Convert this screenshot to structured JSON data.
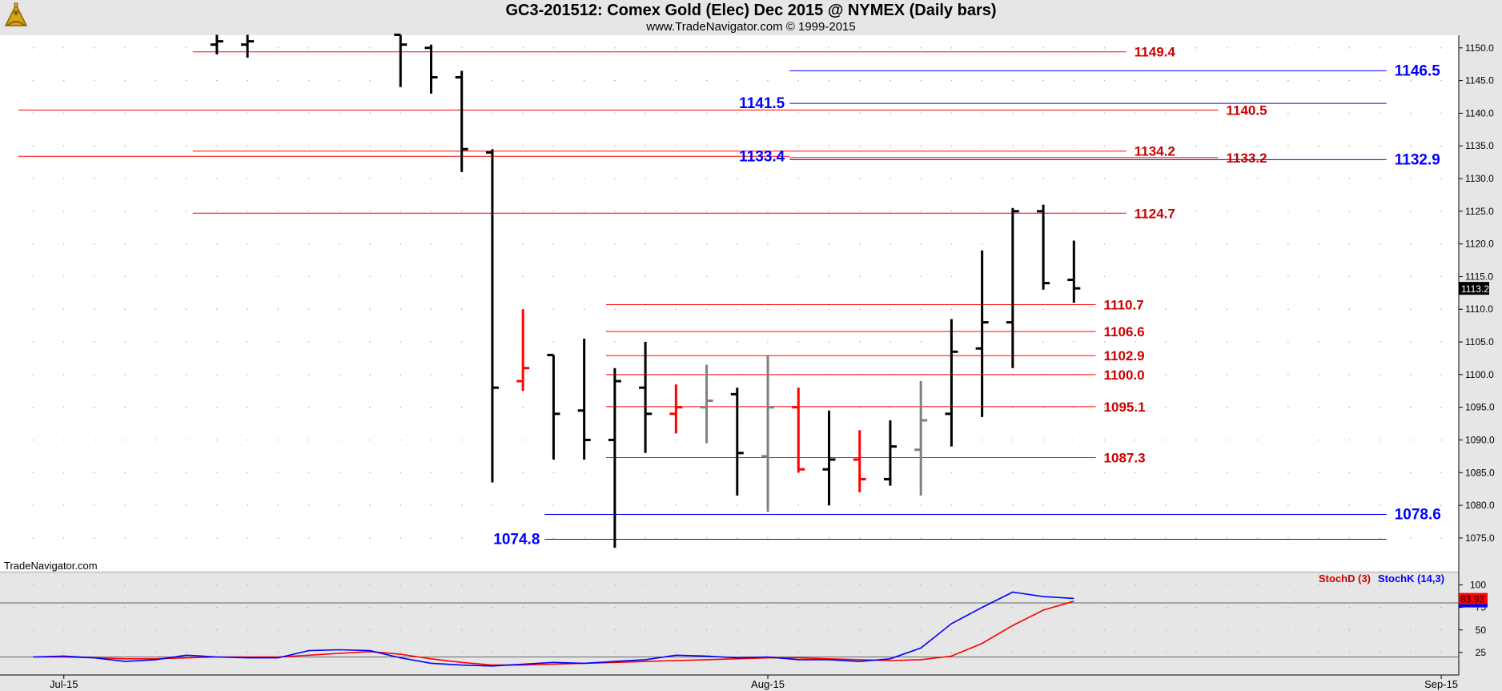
{
  "header": {
    "title": "GC3-201512:  Comex Gold (Elec) Dec 2015 @ NYMEX  (Daily bars)",
    "subtitle": "www.TradeNavigator.com © 1999-2015",
    "watermark": "TradeNavigator.com"
  },
  "colors": {
    "background": "#ffffff",
    "frame": "#e6e6e6",
    "up_bar": "#000000",
    "down_bar": "#ff0000",
    "neutral_bar": "#808080",
    "red_level": "#ff0000",
    "red_label": "#cc0000",
    "blue_level": "#0000ff",
    "stoch_d": "#ff0000",
    "stoch_k": "#0000ff"
  },
  "chart_data": [
    {
      "type": "ohlc",
      "title": "GC3-201512:  Comex Gold (Elec) Dec 2015 @ NYMEX  (Daily bars)",
      "ylim": [
        1071,
        1152
      ],
      "y_ticks": [
        "1075.0",
        "1080.0",
        "1085.0",
        "1090.0",
        "1095.0",
        "1100.0",
        "1105.0",
        "1110.0",
        "1115.0",
        "1120.0",
        "1125.0",
        "1130.0",
        "1135.0",
        "1140.0",
        "1145.0",
        "1150.0"
      ],
      "x_ticks": [
        {
          "label": "Jul-15",
          "index": 1
        },
        {
          "label": "Aug-15",
          "index": 24
        },
        {
          "label": "Sep-15",
          "index": 46
        }
      ],
      "last_price": "1113.2",
      "bars": [
        {
          "i": 6,
          "o": 1150.5,
          "h": 1152.0,
          "l": 1149.0,
          "c": 1151.0,
          "color": "black"
        },
        {
          "i": 7,
          "o": 1150.5,
          "h": 1152.0,
          "l": 1148.5,
          "c": 1151.0,
          "color": "black"
        },
        {
          "i": 12,
          "o": 1152.0,
          "h": 1152.0,
          "l": 1144.0,
          "c": 1150.5,
          "color": "black"
        },
        {
          "i": 13,
          "o": 1150.0,
          "h": 1150.5,
          "l": 1143.0,
          "c": 1145.5,
          "color": "black"
        },
        {
          "i": 14,
          "o": 1145.5,
          "h": 1146.5,
          "l": 1131.0,
          "c": 1134.5,
          "color": "black"
        },
        {
          "i": 15,
          "o": 1134.0,
          "h": 1134.5,
          "l": 1083.5,
          "c": 1098.0,
          "color": "black"
        },
        {
          "i": 16,
          "o": 1099.0,
          "h": 1110.0,
          "l": 1097.5,
          "c": 1101.0,
          "color": "red"
        },
        {
          "i": 17,
          "o": 1103.0,
          "h": 1103.0,
          "l": 1087.0,
          "c": 1094.0,
          "color": "black"
        },
        {
          "i": 18,
          "o": 1094.5,
          "h": 1105.5,
          "l": 1087.0,
          "c": 1090.0,
          "color": "black"
        },
        {
          "i": 19,
          "o": 1090.0,
          "h": 1101.0,
          "l": 1073.5,
          "c": 1099.0,
          "color": "black"
        },
        {
          "i": 20,
          "o": 1098.0,
          "h": 1105.0,
          "l": 1088.0,
          "c": 1094.0,
          "color": "black"
        },
        {
          "i": 21,
          "o": 1094.0,
          "h": 1098.5,
          "l": 1091.0,
          "c": 1095.0,
          "color": "red"
        },
        {
          "i": 22,
          "o": 1095.0,
          "h": 1101.5,
          "l": 1089.5,
          "c": 1096.0,
          "color": "gray"
        },
        {
          "i": 23,
          "o": 1097.0,
          "h": 1098.0,
          "l": 1081.5,
          "c": 1088.0,
          "color": "black"
        },
        {
          "i": 24,
          "o": 1087.5,
          "h": 1103.0,
          "l": 1079.0,
          "c": 1095.0,
          "color": "gray"
        },
        {
          "i": 25,
          "o": 1095.0,
          "h": 1098.0,
          "l": 1085.0,
          "c": 1085.5,
          "color": "red"
        },
        {
          "i": 26,
          "o": 1085.5,
          "h": 1094.5,
          "l": 1080.0,
          "c": 1087.0,
          "color": "black"
        },
        {
          "i": 27,
          "o": 1087.0,
          "h": 1091.5,
          "l": 1082.0,
          "c": 1084.0,
          "color": "red"
        },
        {
          "i": 28,
          "o": 1084.0,
          "h": 1093.0,
          "l": 1083.0,
          "c": 1089.0,
          "color": "black"
        },
        {
          "i": 29,
          "o": 1088.5,
          "h": 1099.0,
          "l": 1081.5,
          "c": 1093.0,
          "color": "gray"
        },
        {
          "i": 30,
          "o": 1094.0,
          "h": 1108.5,
          "l": 1089.0,
          "c": 1103.5,
          "color": "black"
        },
        {
          "i": 31,
          "o": 1104.0,
          "h": 1119.0,
          "l": 1093.5,
          "c": 1108.0,
          "color": "black"
        },
        {
          "i": 32,
          "o": 1108.0,
          "h": 1125.5,
          "l": 1101.0,
          "c": 1125.0,
          "color": "black"
        },
        {
          "i": 33,
          "o": 1125.0,
          "h": 1126.0,
          "l": 1113.0,
          "c": 1114.0,
          "color": "black"
        },
        {
          "i": 34,
          "o": 1114.5,
          "h": 1120.5,
          "l": 1111.0,
          "c": 1113.2,
          "color": "black"
        }
      ],
      "levels": [
        {
          "value": 1149.4,
          "label": "1149.4",
          "color": "red",
          "from": 5.5,
          "to": 36,
          "label_side": "right"
        },
        {
          "value": 1146.5,
          "label": "1146.5",
          "color": "blue",
          "from": 25,
          "to": 44.5,
          "label_side": "right"
        },
        {
          "value": 1141.5,
          "label": "1141.5",
          "color": "blue",
          "from": 25,
          "to": 44.5,
          "label_side": "left"
        },
        {
          "value": 1140.5,
          "label": "1140.5",
          "color": "red",
          "from": -0.2,
          "to": 39,
          "label_side": "right"
        },
        {
          "value": 1134.2,
          "label": "1134.2",
          "color": "red",
          "from": 5.5,
          "to": 36,
          "label_side": "right"
        },
        {
          "value": 1133.4,
          "label": "1133.4",
          "color": "red",
          "from": -0.2,
          "to": 25,
          "label_side": "left-blue"
        },
        {
          "value": 1133.2,
          "label": "1133.2",
          "color": "red",
          "from": 25,
          "to": 39,
          "label_side": "right"
        },
        {
          "value": 1132.9,
          "label": "1132.9",
          "color": "blue",
          "from": 25,
          "to": 44.5,
          "label_side": "right"
        },
        {
          "value": 1124.7,
          "label": "1124.7",
          "color": "red",
          "from": 5.5,
          "to": 36,
          "label_side": "right"
        },
        {
          "value": 1110.7,
          "label": "1110.7",
          "color": "red",
          "from": 19,
          "to": 35,
          "label_side": "right"
        },
        {
          "value": 1106.6,
          "label": "1106.6",
          "color": "red",
          "from": 19,
          "to": 35,
          "label_side": "right"
        },
        {
          "value": 1102.9,
          "label": "1102.9",
          "color": "red",
          "from": 19,
          "to": 35,
          "label_side": "right"
        },
        {
          "value": 1100.0,
          "label": "1100.0",
          "color": "red",
          "from": 19,
          "to": 35,
          "label_side": "right"
        },
        {
          "value": 1095.1,
          "label": "1095.1",
          "color": "red",
          "from": 19,
          "to": 35,
          "label_side": "right"
        },
        {
          "value": 1087.3,
          "label": "1087.3",
          "color": "red",
          "from": 19,
          "to": 35,
          "label_side": "right"
        },
        {
          "value": 1078.6,
          "label": "1078.6",
          "color": "blue",
          "from": 17,
          "to": 44.5,
          "label_side": "right"
        },
        {
          "value": 1074.8,
          "label": "1074.8",
          "color": "blue",
          "from": 17,
          "to": 44.5,
          "label_side": "left"
        }
      ]
    },
    {
      "type": "line",
      "ylim": [
        0,
        112
      ],
      "y_ticks": [
        "25",
        "50",
        "75",
        "100"
      ],
      "reference_lines": [
        20,
        80
      ],
      "last_value": "83.93",
      "legend": [
        {
          "name": "StochD (3)",
          "color": "red"
        },
        {
          "name": "StochK (14,3)",
          "color": "blue"
        }
      ],
      "series": [
        {
          "name": "StochD (3)",
          "x": [
            0,
            1,
            2,
            3,
            4,
            5,
            6,
            7,
            8,
            9,
            10,
            11,
            12,
            13,
            14,
            15,
            16,
            17,
            18,
            19,
            20,
            21,
            22,
            23,
            24,
            25,
            26,
            27,
            28,
            29,
            30,
            31,
            32,
            33,
            34
          ],
          "values": [
            20,
            20,
            19,
            18,
            18,
            19,
            20,
            20,
            20,
            22,
            24,
            26,
            23,
            18,
            14,
            11,
            11,
            12,
            13,
            14,
            15,
            16,
            17,
            18,
            19,
            19,
            18,
            17,
            16,
            17,
            21,
            35,
            55,
            72,
            82
          ]
        },
        {
          "name": "StochK (14,3)",
          "x": [
            0,
            1,
            2,
            3,
            4,
            5,
            6,
            7,
            8,
            9,
            10,
            11,
            12,
            13,
            14,
            15,
            16,
            17,
            18,
            19,
            20,
            21,
            22,
            23,
            24,
            25,
            26,
            27,
            28,
            29,
            30,
            31,
            32,
            33,
            34
          ],
          "values": [
            20,
            21,
            19,
            15,
            17,
            22,
            20,
            19,
            19,
            27,
            28,
            27,
            19,
            13,
            11,
            10,
            12,
            14,
            13,
            15,
            17,
            22,
            21,
            19,
            20,
            17,
            17,
            15,
            18,
            30,
            57,
            75,
            92,
            87,
            85
          ]
        }
      ]
    }
  ]
}
